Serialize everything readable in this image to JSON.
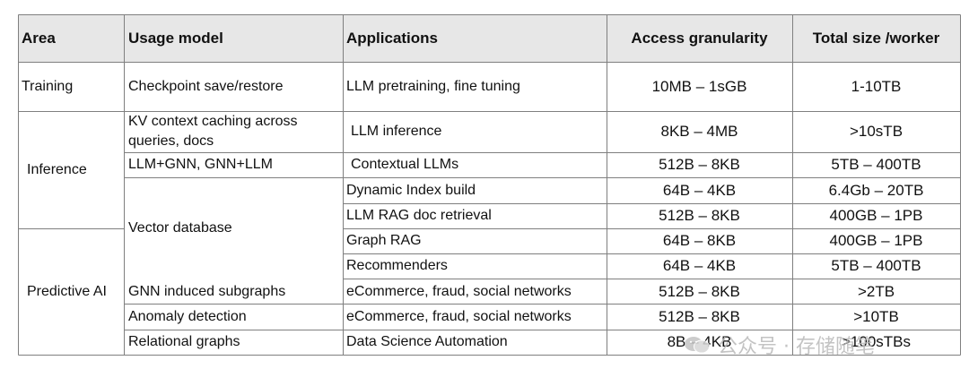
{
  "headers": {
    "area": "Area",
    "usage_model": "Usage model",
    "applications": "Applications",
    "access_granularity": "Access granularity",
    "total_size": "Total size /worker"
  },
  "area_cells": {
    "training": "Training",
    "inference": "Inference",
    "predictive": "Predictive AI"
  },
  "usage_cells": {
    "checkpoint": "Checkpoint save/restore",
    "kv_line1": "KV context caching across",
    "kv_line2": "queries, docs",
    "llm_gnn": "LLM+GNN, GNN+LLM",
    "vector_db": "Vector database",
    "gnn_subgraphs": "GNN induced subgraphs",
    "anomaly": "Anomaly detection",
    "relational": "Relational graphs"
  },
  "rows": [
    {
      "application": "LLM pretraining, fine tuning",
      "granularity": "10MB – 1sGB",
      "size": "1-10TB"
    },
    {
      "application": "LLM inference",
      "granularity": "8KB – 4MB",
      "size": ">10sTB"
    },
    {
      "application": "Contextual LLMs",
      "granularity": "512B – 8KB",
      "size": "5TB – 400TB"
    },
    {
      "application": "Dynamic Index build",
      "granularity": "64B – 4KB",
      "size": "6.4Gb – 20TB"
    },
    {
      "application": "LLM RAG doc retrieval",
      "granularity": "512B – 8KB",
      "size": "400GB – 1PB"
    },
    {
      "application": "Graph RAG",
      "granularity": "64B – 8KB",
      "size": "400GB – 1PB"
    },
    {
      "application": "Recommenders",
      "granularity": "64B – 4KB",
      "size": "5TB – 400TB"
    },
    {
      "application": "eCommerce, fraud, social networks",
      "granularity": "512B – 8KB",
      "size": ">2TB"
    },
    {
      "application": "eCommerce, fraud, social networks",
      "granularity": "512B – 8KB",
      "size": ">10TB"
    },
    {
      "application": "Data Science Automation",
      "granularity": "8B – 4KB",
      "size": ">100sTBs"
    }
  ],
  "watermark": {
    "text": "公众号 · 存储随笔",
    "icon": "wechat-logo-icon"
  },
  "colors": {
    "header_bg": "#e7e7e7",
    "grid": "#7f7f7f",
    "watermark": "#b9b9b9"
  }
}
